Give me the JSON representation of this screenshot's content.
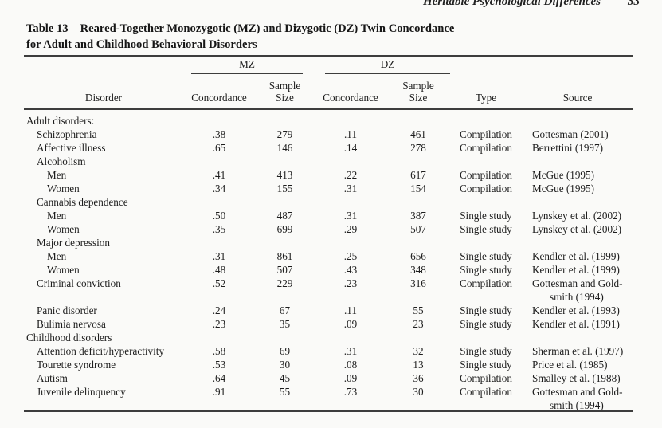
{
  "page": {
    "running_head": "Heritable Psychological Differences",
    "page_number": "33"
  },
  "table": {
    "label": "Table 13",
    "title_line1": "Reared-Together Monozygotic (MZ) and Dizygotic (DZ) Twin Concordance",
    "title_line2": "for Adult and Childhood Behavioral Disorders",
    "col_groups": {
      "mz": "MZ",
      "dz": "DZ"
    },
    "headers": {
      "disorder": "Disorder",
      "concordance": "Concordance",
      "sample_line1": "Sample",
      "sample_line2": "Size",
      "type": "Type",
      "source": "Source"
    },
    "rows": [
      {
        "label": "Adult disorders:",
        "indent": 0,
        "section": true
      },
      {
        "label": "Schizophrenia",
        "indent": 1,
        "mz_concordance": ".38",
        "mz_sample": "279",
        "dz_concordance": ".11",
        "dz_sample": "461",
        "type": "Compilation",
        "source": [
          "Gottesman (2001)"
        ]
      },
      {
        "label": "Affective illness",
        "indent": 1,
        "mz_concordance": ".65",
        "mz_sample": "146",
        "dz_concordance": ".14",
        "dz_sample": "278",
        "type": "Compilation",
        "source": [
          "Berrettini (1997)"
        ]
      },
      {
        "label": "Alcoholism",
        "indent": 1,
        "section": true
      },
      {
        "label": "Men",
        "indent": 2,
        "mz_concordance": ".41",
        "mz_sample": "413",
        "dz_concordance": ".22",
        "dz_sample": "617",
        "type": "Compilation",
        "source": [
          "McGue (1995)"
        ]
      },
      {
        "label": "Women",
        "indent": 2,
        "mz_concordance": ".34",
        "mz_sample": "155",
        "dz_concordance": ".31",
        "dz_sample": "154",
        "type": "Compilation",
        "source": [
          "McGue (1995)"
        ]
      },
      {
        "label": "Cannabis dependence",
        "indent": 1,
        "section": true
      },
      {
        "label": "Men",
        "indent": 2,
        "mz_concordance": ".50",
        "mz_sample": "487",
        "dz_concordance": ".31",
        "dz_sample": "387",
        "type": "Single study",
        "source": [
          "Lynskey et al. (2002)"
        ]
      },
      {
        "label": "Women",
        "indent": 2,
        "mz_concordance": ".35",
        "mz_sample": "699",
        "dz_concordance": ".29",
        "dz_sample": "507",
        "type": "Single study",
        "source": [
          "Lynskey et al. (2002)"
        ]
      },
      {
        "label": "Major depression",
        "indent": 1,
        "section": true
      },
      {
        "label": "Men",
        "indent": 2,
        "mz_concordance": ".31",
        "mz_sample": "861",
        "dz_concordance": ".25",
        "dz_sample": "656",
        "type": "Single study",
        "source": [
          "Kendler et al. (1999)"
        ]
      },
      {
        "label": "Women",
        "indent": 2,
        "mz_concordance": ".48",
        "mz_sample": "507",
        "dz_concordance": ".43",
        "dz_sample": "348",
        "type": "Single study",
        "source": [
          "Kendler et al. (1999)"
        ]
      },
      {
        "label": "Criminal conviction",
        "indent": 1,
        "mz_concordance": ".52",
        "mz_sample": "229",
        "dz_concordance": ".23",
        "dz_sample": "316",
        "type": "Compilation",
        "source": [
          "Gottesman and Gold-",
          "smith (1994)"
        ]
      },
      {
        "label": "Panic disorder",
        "indent": 1,
        "mz_concordance": ".24",
        "mz_sample": "67",
        "dz_concordance": ".11",
        "dz_sample": "55",
        "type": "Single study",
        "source": [
          "Kendler et al. (1993)"
        ]
      },
      {
        "label": "Bulimia nervosa",
        "indent": 1,
        "mz_concordance": ".23",
        "mz_sample": "35",
        "dz_concordance": ".09",
        "dz_sample": "23",
        "type": "Single study",
        "source": [
          "Kendler et al. (1991)"
        ]
      },
      {
        "label": "Childhood disorders",
        "indent": 0,
        "section": true
      },
      {
        "label": "Attention deficit/hyperactivity",
        "indent": 1,
        "mz_concordance": ".58",
        "mz_sample": "69",
        "dz_concordance": ".31",
        "dz_sample": "32",
        "type": "Single study",
        "source": [
          "Sherman et al. (1997)"
        ]
      },
      {
        "label": "Tourette syndrome",
        "indent": 1,
        "mz_concordance": ".53",
        "mz_sample": "30",
        "dz_concordance": ".08",
        "dz_sample": "13",
        "type": "Single study",
        "source": [
          "Price et al. (1985)"
        ]
      },
      {
        "label": "Autism",
        "indent": 1,
        "mz_concordance": ".64",
        "mz_sample": "45",
        "dz_concordance": ".09",
        "dz_sample": "36",
        "type": "Compilation",
        "source": [
          "Smalley et al. (1988)"
        ]
      },
      {
        "label": "Juvenile delinquency",
        "indent": 1,
        "mz_concordance": ".91",
        "mz_sample": "55",
        "dz_concordance": ".73",
        "dz_sample": "30",
        "type": "Compilation",
        "source": [
          "Gottesman and Gold-",
          "smith (1994)"
        ]
      }
    ]
  }
}
